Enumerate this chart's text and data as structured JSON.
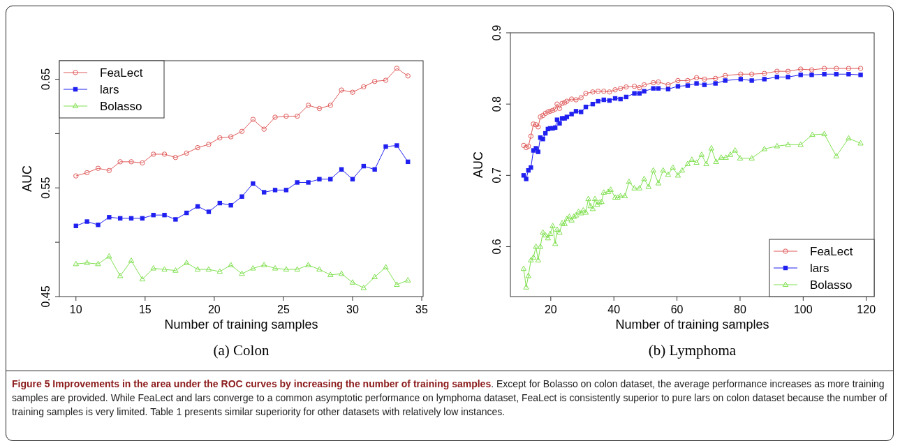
{
  "chart_data": [
    {
      "type": "line",
      "title": "(a) Colon",
      "xlabel": "Number of training samples",
      "ylabel": "AUC",
      "x": [
        10,
        10.8,
        11.6,
        12.4,
        13.2,
        14,
        14.8,
        15.6,
        16.4,
        17.2,
        18,
        18.8,
        19.6,
        20.4,
        21.2,
        22,
        22.8,
        23.6,
        24.4,
        25.2,
        26,
        26.8,
        27.6,
        28.4,
        29.2,
        30,
        30.8,
        31.6,
        32.4,
        33.2,
        34
      ],
      "xlim": [
        8.8,
        35.1
      ],
      "xticks": [
        10,
        15,
        20,
        25,
        30,
        35
      ],
      "ylim": [
        0.45,
        0.667
      ],
      "yticks": [
        0.45,
        {
          "value": 0.5,
          "label": null
        },
        0.55,
        {
          "value": 0.6,
          "label": null
        },
        0.65
      ],
      "legend": "top left",
      "series": [
        {
          "name": "FeaLect",
          "color": "#e05a5a",
          "marker": "circle",
          "values": [
            0.561,
            0.564,
            0.568,
            0.566,
            0.574,
            0.574,
            0.573,
            0.581,
            0.581,
            0.578,
            0.582,
            0.587,
            0.59,
            0.596,
            0.597,
            0.602,
            0.613,
            0.604,
            0.615,
            0.616,
            0.616,
            0.626,
            0.623,
            0.626,
            0.64,
            0.638,
            0.643,
            0.648,
            0.649,
            0.66,
            0.653
          ]
        },
        {
          "name": "lars",
          "color": "#2020f0",
          "marker": "square",
          "values": [
            0.515,
            0.519,
            0.516,
            0.523,
            0.522,
            0.522,
            0.522,
            0.525,
            0.525,
            0.521,
            0.527,
            0.533,
            0.528,
            0.536,
            0.534,
            0.542,
            0.554,
            0.546,
            0.548,
            0.548,
            0.555,
            0.555,
            0.558,
            0.558,
            0.567,
            0.558,
            0.57,
            0.567,
            0.588,
            0.589,
            0.574
          ]
        },
        {
          "name": "Bolasso",
          "color": "#80e050",
          "marker": "triangle",
          "values": [
            0.48,
            0.481,
            0.48,
            0.487,
            0.469,
            0.483,
            0.466,
            0.476,
            0.475,
            0.474,
            0.481,
            0.475,
            0.475,
            0.473,
            0.479,
            0.471,
            0.476,
            0.479,
            0.476,
            0.475,
            0.475,
            0.479,
            0.475,
            0.47,
            0.471,
            0.463,
            0.458,
            0.468,
            0.477,
            0.461,
            0.465
          ]
        }
      ],
      "annotations": [
        "Figure 5 Improvements in the area under the ROC curves by increasing the number of training samples",
        ". Except for Bolasso on colon dataset, the average performance increases as more training samples are provided. While FeaLect and lars converge to a common asymptotic performance on lymphoma dataset, FeaLect is consistently superior to pure lars on colon dataset because the number of training samples is very limited. Table 1 presents similar superiority for other datasets with relatively low instances."
      ]
    },
    {
      "type": "line",
      "title": "(b) Lymphoma",
      "xlabel": "Number of training samples",
      "ylabel": "AUC",
      "x": [
        11.4,
        12.2,
        12.9,
        13.7,
        14.5,
        15.3,
        16.0,
        16.7,
        17.5,
        18.3,
        19.1,
        19.8,
        20.6,
        21.4,
        22.0,
        22.8,
        23.6,
        24.4,
        25.1,
        26.6,
        28.0,
        29.6,
        31.1,
        33.3,
        35.0,
        36.8,
        38.6,
        40.4,
        42.1,
        43.9,
        46.5,
        48.1,
        49.6,
        52.5,
        54.1,
        57.2,
        60.3,
        63.4,
        66.2,
        68.7,
        72.2,
        75.3,
        80.2,
        83.7,
        87.7,
        91.7,
        95.2,
        99.2,
        102.7,
        106.7,
        110.5,
        114.4,
        118.2
      ],
      "xlim": [
        7.2,
        122.5
      ],
      "xticks": [
        20,
        40,
        60,
        80,
        100,
        120
      ],
      "ylim": [
        0.53,
        0.9
      ],
      "yticks": [
        0.6,
        0.7,
        0.8,
        0.9
      ],
      "legend": "bottom right",
      "series": [
        {
          "name": "FeaLect",
          "color": "#e05a5a",
          "marker": "circle",
          "values": [
            0.742,
            0.739,
            0.741,
            0.755,
            0.772,
            0.771,
            0.768,
            0.782,
            0.784,
            0.787,
            0.789,
            0.79,
            0.791,
            0.793,
            0.8,
            0.794,
            0.801,
            0.802,
            0.804,
            0.807,
            0.806,
            0.809,
            0.815,
            0.817,
            0.818,
            0.818,
            0.817,
            0.82,
            0.822,
            0.824,
            0.825,
            0.823,
            0.827,
            0.83,
            0.831,
            0.827,
            0.833,
            0.833,
            0.837,
            0.835,
            0.836,
            0.84,
            0.842,
            0.842,
            0.843,
            0.846,
            0.846,
            0.849,
            0.848,
            0.85,
            0.85,
            0.85,
            0.85
          ]
        },
        {
          "name": "lars",
          "color": "#2020f0",
          "marker": "square",
          "values": [
            0.7,
            0.695,
            0.707,
            0.711,
            0.735,
            0.738,
            0.733,
            0.753,
            0.751,
            0.759,
            0.765,
            0.766,
            0.766,
            0.767,
            0.778,
            0.773,
            0.78,
            0.78,
            0.782,
            0.786,
            0.79,
            0.789,
            0.796,
            0.8,
            0.804,
            0.806,
            0.805,
            0.808,
            0.807,
            0.81,
            0.815,
            0.815,
            0.818,
            0.822,
            0.822,
            0.821,
            0.825,
            0.826,
            0.829,
            0.827,
            0.829,
            0.833,
            0.835,
            0.833,
            0.835,
            0.838,
            0.838,
            0.841,
            0.841,
            0.842,
            0.842,
            0.842,
            0.841
          ]
        },
        {
          "name": "Bolasso",
          "color": "#80e050",
          "marker": "triangle",
          "x": [
            11.4,
            12.2,
            12.9,
            13.7,
            14.5,
            15.3,
            16.0,
            16.7,
            17.5,
            18.3,
            19.1,
            19.8,
            20.6,
            21.4,
            22.0,
            22.8,
            23.6,
            24.4,
            25.1,
            25.9,
            26.6,
            27.3,
            28.0,
            28.8,
            29.6,
            30.3,
            31.1,
            31.9,
            32.6,
            33.3,
            34.0,
            34.7,
            35.4,
            36.1,
            36.8,
            38.2,
            39.0,
            40.4,
            41.2,
            42.1,
            43.5,
            44.8,
            46.5,
            48.1,
            49.6,
            51.0,
            52.5,
            54.1,
            55.6,
            57.2,
            58.7,
            60.3,
            61.6,
            63.4,
            64.7,
            66.2,
            67.8,
            69.3,
            70.9,
            72.4,
            74.0,
            75.5,
            76.9,
            78.4,
            80.0,
            83.7,
            87.7,
            91.7,
            95.2,
            99.2,
            102.9,
            106.7,
            110.5,
            114.4,
            118.2
          ],
          "values": [
            0.569,
            0.543,
            0.559,
            0.581,
            0.585,
            0.6,
            0.581,
            0.6,
            0.62,
            0.616,
            0.612,
            0.618,
            0.629,
            0.604,
            0.624,
            0.62,
            0.633,
            0.632,
            0.639,
            0.642,
            0.637,
            0.642,
            0.644,
            0.649,
            0.647,
            0.651,
            0.648,
            0.667,
            0.657,
            0.653,
            0.667,
            0.659,
            0.662,
            0.663,
            0.676,
            0.677,
            0.68,
            0.669,
            0.669,
            0.671,
            0.671,
            0.691,
            0.682,
            0.682,
            0.695,
            0.684,
            0.707,
            0.689,
            0.707,
            0.701,
            0.711,
            0.7,
            0.707,
            0.716,
            0.722,
            0.718,
            0.729,
            0.716,
            0.738,
            0.719,
            0.725,
            0.725,
            0.729,
            0.735,
            0.724,
            0.724,
            0.737,
            0.741,
            0.743,
            0.743,
            0.757,
            0.758,
            0.727,
            0.752,
            0.745
          ]
        }
      ]
    }
  ]
}
